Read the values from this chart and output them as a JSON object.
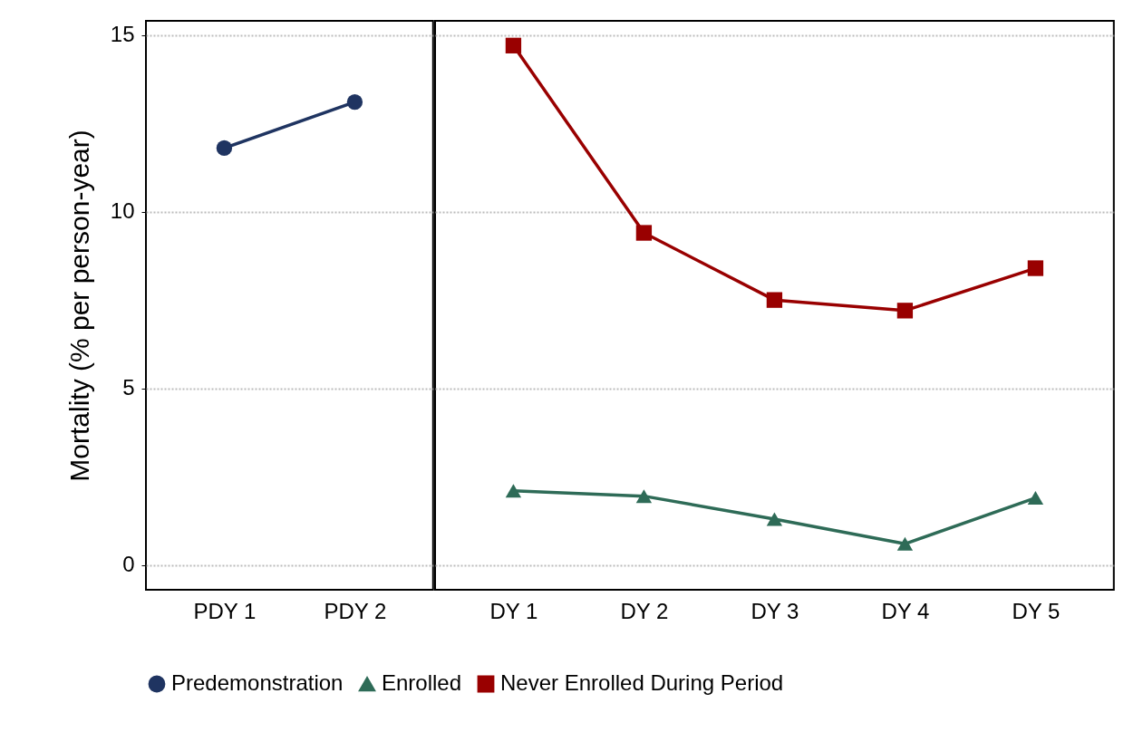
{
  "chart_data": [
    {
      "type": "line",
      "ylabel": "Mortality (% per person-year)",
      "categories": [
        "PDY 1",
        "PDY 2"
      ],
      "series": [
        {
          "name": "Predemonstration",
          "color": "#1f3461",
          "marker": "circle",
          "values": [
            11.8,
            13.1
          ]
        }
      ],
      "ylim": [
        -0.7,
        15.4
      ],
      "yticks": [
        0,
        5,
        10,
        15
      ],
      "grid": "y",
      "legend": "bottom"
    },
    {
      "type": "line",
      "categories": [
        "DY 1",
        "DY 2",
        "DY 3",
        "DY 4",
        "DY 5"
      ],
      "series": [
        {
          "name": "Enrolled",
          "color": "#2e6b57",
          "marker": "triangle",
          "values": [
            2.1,
            1.95,
            1.3,
            0.6,
            1.9
          ]
        },
        {
          "name": "Never Enrolled During Period",
          "color": "#990000",
          "marker": "square",
          "values": [
            14.7,
            9.4,
            7.5,
            7.2,
            8.4
          ]
        }
      ],
      "ylim": [
        -0.7,
        15.4
      ],
      "yticks": [
        0,
        5,
        10,
        15
      ],
      "grid": "y",
      "legend": "bottom",
      "tick_labels": "x"
    }
  ]
}
